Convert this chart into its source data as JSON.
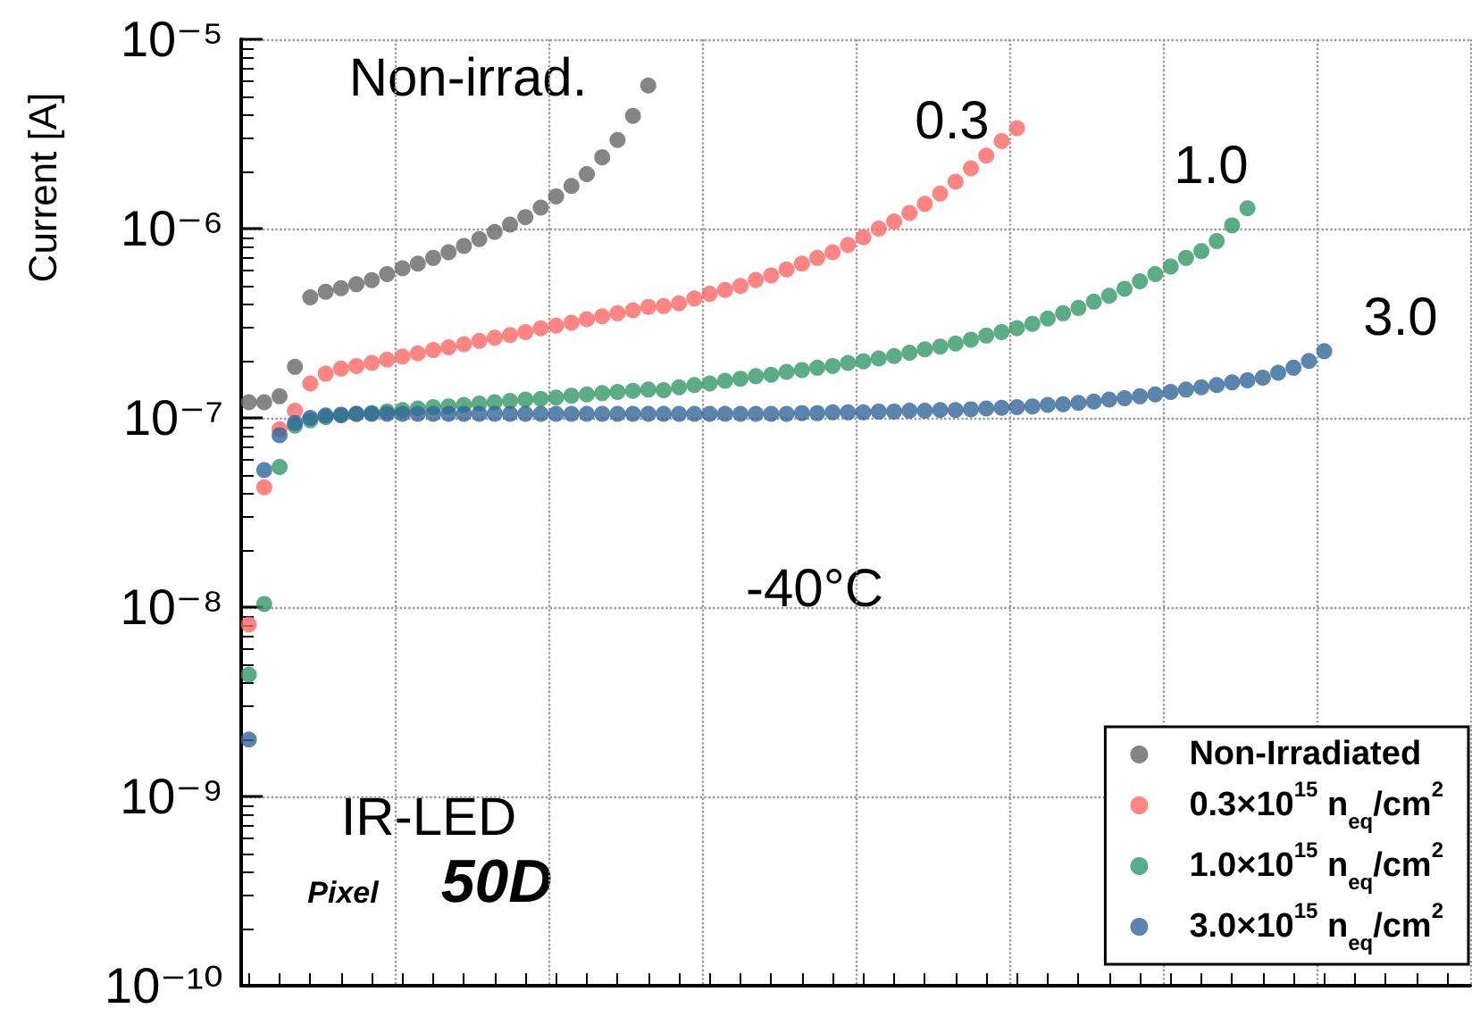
{
  "chart_data": {
    "type": "scatter",
    "ylabel": "Current [A]",
    "categories": [
      null,
      null,
      null,
      null,
      null,
      null,
      null,
      null,
      null,
      null,
      null,
      null,
      null,
      null,
      null,
      null,
      null,
      null,
      null,
      null,
      null,
      null,
      null,
      null,
      null,
      null,
      null,
      null,
      null,
      null,
      null,
      null,
      null,
      null,
      null,
      null,
      null,
      null,
      null,
      null,
      null,
      null,
      null,
      null,
      null,
      null,
      null,
      null,
      null,
      null,
      null,
      null,
      null,
      null,
      null,
      null,
      null,
      null,
      null,
      null,
      null,
      null,
      null,
      null,
      null,
      null,
      null,
      null,
      null,
      null,
      null,
      null,
      null,
      null,
      null,
      null,
      null,
      null,
      null,
      null
    ],
    "series": [
      {
        "name": "Non-Irradiated",
        "color": "#666666",
        "values": [
          1.21e-07,
          1.21e-07,
          1.3e-07,
          1.86e-07,
          4.33e-07,
          4.64e-07,
          4.84e-07,
          5.08e-07,
          5.34e-07,
          5.75e-07,
          6.17e-07,
          6.53e-07,
          7e-07,
          7.5e-07,
          8.1e-07,
          8.8e-07,
          9.6e-07,
          1.05e-06,
          1.15e-06,
          1.29e-06,
          1.48e-06,
          1.68e-06,
          1.94e-06,
          2.38e-06,
          2.94e-06,
          3.94e-06,
          5.7e-06,
          null,
          null,
          null,
          null,
          null,
          null,
          null,
          null,
          null,
          null,
          null,
          null,
          null,
          null,
          null,
          null,
          null,
          null,
          null,
          null,
          null,
          null,
          null,
          null,
          null,
          null,
          null,
          null,
          null,
          null,
          null,
          null,
          null,
          null,
          null,
          null,
          null,
          null,
          null,
          null,
          null,
          null,
          null,
          null,
          null,
          null,
          null,
          null,
          null,
          null,
          null,
          null,
          null
        ]
      },
      {
        "name": "0.3×10$^{15}$ n$_{eq}$/cm$^{2}$",
        "color": "#ff6666",
        "values": [
          8.1e-09,
          4.3e-08,
          8.7e-08,
          1.09e-07,
          1.52e-07,
          1.71e-07,
          1.82e-07,
          1.88e-07,
          1.95e-07,
          2.03e-07,
          2.11e-07,
          2.19e-07,
          2.28e-07,
          2.36e-07,
          2.45e-07,
          2.55e-07,
          2.65e-07,
          2.74e-07,
          2.84e-07,
          2.97e-07,
          3.07e-07,
          3.18e-07,
          3.32e-07,
          3.44e-07,
          3.57e-07,
          3.7e-07,
          3.86e-07,
          3.9e-07,
          4.03e-07,
          4.27e-07,
          4.52e-07,
          4.74e-07,
          4.98e-07,
          5.35e-07,
          5.66e-07,
          6.08e-07,
          6.53e-07,
          7e-07,
          7.5e-07,
          8.2e-07,
          9e-07,
          1e-06,
          1.09e-06,
          1.21e-06,
          1.35e-06,
          1.53e-06,
          1.77e-06,
          2.08e-06,
          2.43e-06,
          2.9e-06,
          3.39e-06,
          null,
          null,
          null,
          null,
          null,
          null,
          null,
          null,
          null,
          null,
          null,
          null,
          null,
          null,
          null,
          null,
          null,
          null,
          null,
          null,
          null,
          null,
          null,
          null,
          null,
          null,
          null,
          null,
          null
        ]
      },
      {
        "name": "1.0×10$^{15}$ n$_{eq}$/cm$^{2}$",
        "color": "#339966",
        "values": [
          4.4e-09,
          1.04e-08,
          5.5e-08,
          9.1e-08,
          9.7e-08,
          1.01e-07,
          1.03e-07,
          1.05e-07,
          1.06e-07,
          1.08e-07,
          1.1e-07,
          1.12e-07,
          1.14e-07,
          1.15e-07,
          1.17e-07,
          1.19e-07,
          1.21e-07,
          1.23e-07,
          1.25e-07,
          1.26e-07,
          1.28e-07,
          1.31e-07,
          1.33e-07,
          1.35e-07,
          1.37e-07,
          1.39e-07,
          1.41e-07,
          1.4e-07,
          1.45e-07,
          1.49e-07,
          1.52e-07,
          1.57e-07,
          1.61e-07,
          1.66e-07,
          1.69e-07,
          1.75e-07,
          1.79e-07,
          1.84e-07,
          1.88e-07,
          1.95e-07,
          1.99e-07,
          2.06e-07,
          2.12e-07,
          2.21e-07,
          2.3e-07,
          2.38e-07,
          2.47e-07,
          2.59e-07,
          2.72e-07,
          2.84e-07,
          2.98e-07,
          3.14e-07,
          3.35e-07,
          3.57e-07,
          3.81e-07,
          4.11e-07,
          4.42e-07,
          4.81e-07,
          5.27e-07,
          5.75e-07,
          6.31e-07,
          7e-07,
          7.6e-07,
          8.6e-07,
          1.04e-06,
          1.28e-06,
          null,
          null,
          null,
          null,
          null,
          null,
          null,
          null,
          null,
          null,
          null,
          null,
          null,
          null
        ]
      },
      {
        "name": "3.0×10$^{15}$ n$_{eq}$/cm$^{2}$",
        "color": "#336699",
        "values": [
          2e-09,
          5.3e-08,
          8.1e-08,
          9.4e-08,
          1e-07,
          1.03e-07,
          1.04e-07,
          1.05e-07,
          1.05e-07,
          1.05e-07,
          1.05e-07,
          1.05e-07,
          1.05e-07,
          1.05e-07,
          1.05e-07,
          1.05e-07,
          1.05e-07,
          1.05e-07,
          1.05e-07,
          1.05e-07,
          1.05e-07,
          1.05e-07,
          1.05e-07,
          1.05e-07,
          1.05e-07,
          1.05e-07,
          1.05e-07,
          1.05e-07,
          1.05e-07,
          1.05e-07,
          1.05e-07,
          1.05e-07,
          1.05e-07,
          1.05e-07,
          1.05e-07,
          1.05e-07,
          1.06e-07,
          1.06e-07,
          1.07e-07,
          1.07e-07,
          1.07e-07,
          1.08e-07,
          1.08e-07,
          1.09e-07,
          1.09e-07,
          1.1e-07,
          1.1e-07,
          1.11e-07,
          1.12e-07,
          1.13e-07,
          1.14e-07,
          1.15e-07,
          1.17e-07,
          1.18e-07,
          1.2e-07,
          1.22e-07,
          1.25e-07,
          1.27e-07,
          1.3e-07,
          1.33e-07,
          1.37e-07,
          1.41e-07,
          1.45e-07,
          1.49e-07,
          1.54e-07,
          1.58e-07,
          1.63e-07,
          1.73e-07,
          1.84e-07,
          2e-07,
          2.25e-07,
          null,
          null,
          null,
          null,
          null,
          null,
          null,
          null,
          null
        ]
      }
    ],
    "ylim": [
      1e-10,
      1e-05
    ],
    "yticks": [
      {
        "value": 1e-10,
        "label": "10⁻¹⁰"
      },
      {
        "value": 1e-09,
        "label": "10⁻⁹"
      },
      {
        "value": 1e-08,
        "label": "10⁻⁸"
      },
      {
        "value": 1e-07,
        "label": "10⁻⁷"
      },
      {
        "value": 1e-06,
        "label": "10⁻⁶"
      },
      {
        "value": 1e-05,
        "label": "10⁻⁵"
      }
    ],
    "log": "y",
    "grid": true,
    "legend": "bottom right",
    "tick_labels": "y",
    "marker": "circle",
    "annotations": [
      "Non-irrad.",
      "0.3",
      "1.0",
      "3.0",
      "-40°C",
      "IR-LED",
      "Pixel",
      "50D"
    ]
  }
}
